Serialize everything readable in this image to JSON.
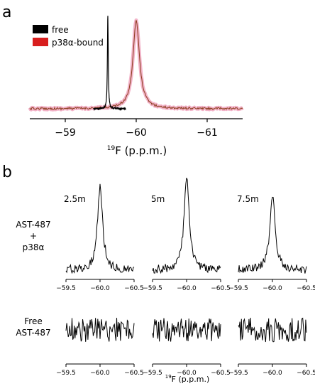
{
  "figure": {
    "panel_a_letter": "a",
    "panel_b_letter": "b"
  },
  "chart_data": [
    {
      "type": "line",
      "panel": "a",
      "xlabel_sup": "19",
      "xlabel_main": "F (p.p.m.)",
      "x_reversed": true,
      "xlim": [
        -58.5,
        -61.5
      ],
      "x_ticks": [
        -59,
        -60,
        -61
      ],
      "x_tick_labels": [
        "−59",
        "−60",
        "−61"
      ],
      "legend_position": "top-left",
      "series": [
        {
          "name": "free",
          "color": "#000000",
          "peak_ppm": -59.6,
          "x_range": [
            -59.4,
            -59.85
          ],
          "peak_height": 1.0,
          "width": 0.007
        },
        {
          "name": "p38α-bound",
          "color": "#8a3a1a",
          "halo": "#f2b3c8",
          "peak_ppm": -60.0,
          "x_range": [
            -58.5,
            -61.5
          ],
          "peak_height": 0.95,
          "width": 0.055
        }
      ]
    },
    {
      "type": "line",
      "panel": "b",
      "xlabel_sup": "19",
      "xlabel_main": "F (p.p.m.)",
      "x_reversed": true,
      "xlim": [
        -59.5,
        -60.5
      ],
      "x_ticks": [
        -59.5,
        -60.0,
        -60.5
      ],
      "x_tick_labels": [
        "−59.5",
        "−60.0",
        "−60.5"
      ],
      "time_labels": [
        "2.5m",
        "5m",
        "7.5m"
      ],
      "rows": [
        {
          "label_lines": [
            "AST-487",
            "+",
            "p38α"
          ],
          "has_peak": true,
          "peak_ppm": -60.0
        },
        {
          "label_lines": [
            "Free",
            "AST-487"
          ],
          "has_peak": false
        }
      ]
    }
  ]
}
